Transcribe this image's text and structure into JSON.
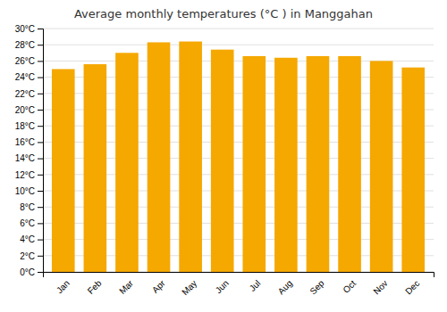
{
  "chart_data": {
    "type": "bar",
    "title": "Average monthly temperatures (°C ) in Manggahan",
    "categories": [
      "Jan",
      "Feb",
      "Mar",
      "Apr",
      "May",
      "Jun",
      "Jul",
      "Aug",
      "Sep",
      "Oct",
      "Nov",
      "Dec"
    ],
    "values": [
      25.0,
      25.6,
      27.0,
      28.3,
      28.4,
      27.4,
      26.6,
      26.4,
      26.6,
      26.6,
      26.0,
      25.2
    ],
    "color": "#F5A800",
    "ylim": [
      0,
      30
    ],
    "yticks": [
      {
        "value": 0,
        "label": "0°C"
      },
      {
        "value": 2,
        "label": "2°C"
      },
      {
        "value": 4,
        "label": "4°C"
      },
      {
        "value": 6,
        "label": "6°C"
      },
      {
        "value": 8,
        "label": "8°C"
      },
      {
        "value": 10,
        "label": "10°C"
      },
      {
        "value": 12,
        "label": "12°C"
      },
      {
        "value": 14,
        "label": "14°C"
      },
      {
        "value": 16,
        "label": "16°C"
      },
      {
        "value": 18,
        "label": "18°C"
      },
      {
        "value": 20,
        "label": "20°C"
      },
      {
        "value": 22,
        "label": "22°C"
      },
      {
        "value": 24,
        "label": "24°C"
      },
      {
        "value": 26,
        "label": "26°C"
      },
      {
        "value": 28,
        "label": "28°C"
      },
      {
        "value": 30,
        "label": "30°C"
      }
    ],
    "grid": true
  }
}
